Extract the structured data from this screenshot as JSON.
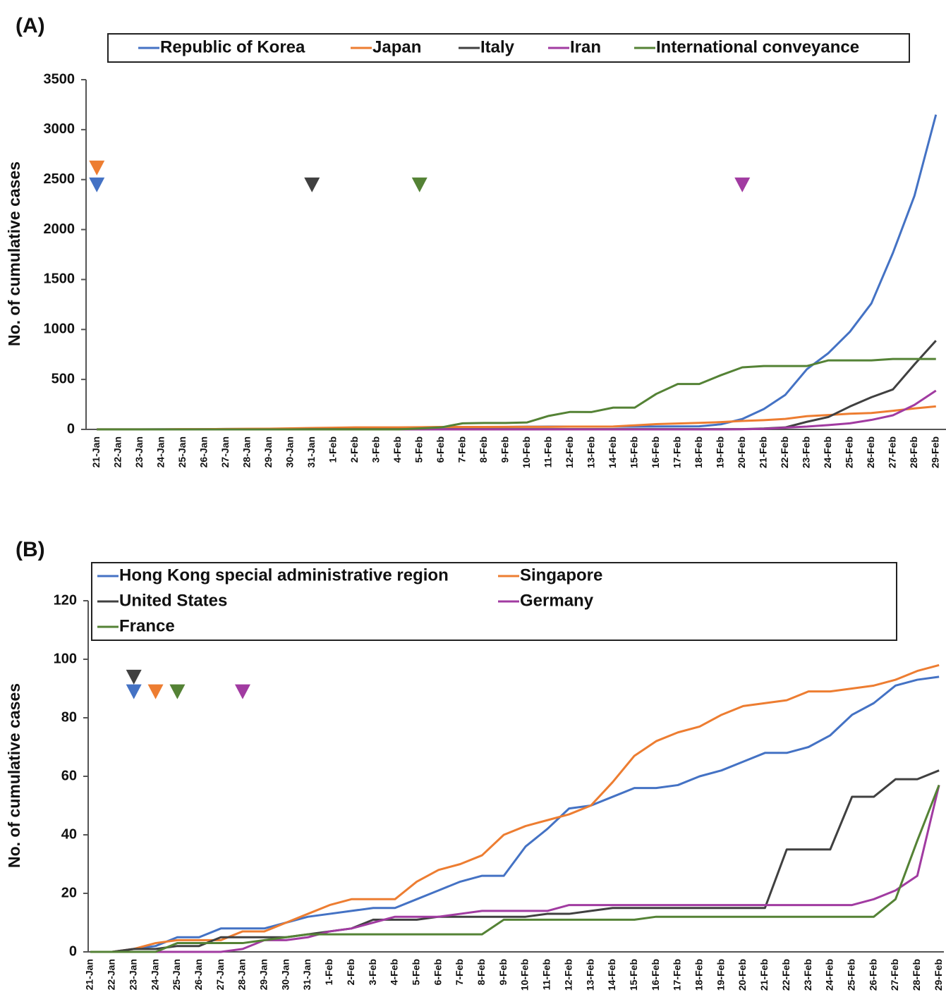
{
  "chart_data": [
    {
      "type": "line",
      "title": "(A)",
      "y_label": "No. of cumulative cases",
      "categories": [
        "21-Jan",
        "22-Jan",
        "23-Jan",
        "24-Jan",
        "25-Jan",
        "26-Jan",
        "27-Jan",
        "28-Jan",
        "29-Jan",
        "30-Jan",
        "31-Jan",
        "1-Feb",
        "2-Feb",
        "3-Feb",
        "4-Feb",
        "5-Feb",
        "6-Feb",
        "7-Feb",
        "8-Feb",
        "9-Feb",
        "10-Feb",
        "11-Feb",
        "12-Feb",
        "13-Feb",
        "14-Feb",
        "15-Feb",
        "16-Feb",
        "17-Feb",
        "18-Feb",
        "19-Feb",
        "20-Feb",
        "21-Feb",
        "22-Feb",
        "23-Feb",
        "24-Feb",
        "25-Feb",
        "26-Feb",
        "27-Feb",
        "28-Feb",
        "29-Feb"
      ],
      "ylim": [
        0,
        3500
      ],
      "yticks": [
        0,
        500,
        1000,
        1500,
        2000,
        2500,
        3000,
        3500
      ],
      "series": [
        {
          "name": "Republic of Korea",
          "color": "#4472c4",
          "values": [
            1,
            1,
            1,
            2,
            2,
            3,
            4,
            4,
            4,
            6,
            11,
            12,
            15,
            15,
            16,
            19,
            23,
            24,
            24,
            25,
            27,
            28,
            28,
            28,
            28,
            28,
            29,
            30,
            31,
            51,
            104,
            204,
            346,
            602,
            763,
            977,
            1261,
            1766,
            2337,
            3150
          ]
        },
        {
          "name": "Japan",
          "color": "#ed7d31",
          "values": [
            1,
            1,
            1,
            1,
            3,
            3,
            4,
            6,
            7,
            11,
            14,
            17,
            20,
            20,
            20,
            22,
            25,
            25,
            25,
            26,
            26,
            26,
            28,
            28,
            29,
            41,
            53,
            59,
            65,
            73,
            85,
            93,
            105,
            132,
            144,
            157,
            164,
            186,
            210,
            230
          ]
        },
        {
          "name": "Italy",
          "color": "#404040",
          "values": [
            0,
            0,
            0,
            0,
            0,
            0,
            0,
            0,
            0,
            0,
            2,
            2,
            2,
            2,
            2,
            2,
            2,
            3,
            3,
            3,
            3,
            3,
            3,
            3,
            3,
            3,
            3,
            3,
            3,
            3,
            3,
            9,
            20,
            76,
            124,
            229,
            322,
            400,
            650,
            888
          ]
        },
        {
          "name": "Iran",
          "color": "#a13ba1",
          "values": [
            0,
            0,
            0,
            0,
            0,
            0,
            0,
            0,
            0,
            0,
            0,
            0,
            0,
            0,
            0,
            0,
            0,
            0,
            0,
            0,
            0,
            0,
            0,
            0,
            0,
            0,
            0,
            0,
            0,
            0,
            2,
            5,
            18,
            28,
            43,
            61,
            95,
            141,
            245,
            388
          ]
        },
        {
          "name": "International conveyance",
          "color": "#548235",
          "values": [
            0,
            0,
            0,
            0,
            0,
            0,
            0,
            0,
            0,
            0,
            0,
            0,
            0,
            0,
            0,
            10,
            20,
            61,
            64,
            64,
            70,
            135,
            175,
            174,
            218,
            218,
            355,
            454,
            454,
            542,
            621,
            634,
            634,
            634,
            691,
            691,
            691,
            705,
            705,
            705
          ]
        }
      ],
      "markers": [
        {
          "category": "21-Jan",
          "y": 2620,
          "color": "#ed7d31"
        },
        {
          "category": "21-Jan",
          "y": 2450,
          "color": "#4472c4"
        },
        {
          "category": "31-Jan",
          "y": 2450,
          "color": "#404040"
        },
        {
          "category": "5-Feb",
          "y": 2450,
          "color": "#548235"
        },
        {
          "category": "20-Feb",
          "y": 2450,
          "color": "#a13ba1"
        }
      ]
    },
    {
      "type": "line",
      "title": "(B)",
      "y_label": "No. of cumulative cases",
      "categories": [
        "21-Jan",
        "22-Jan",
        "23-Jan",
        "24-Jan",
        "25-Jan",
        "26-Jan",
        "27-Jan",
        "28-Jan",
        "29-Jan",
        "30-Jan",
        "31-Jan",
        "1-Feb",
        "2-Feb",
        "3-Feb",
        "4-Feb",
        "5-Feb",
        "6-Feb",
        "7-Feb",
        "8-Feb",
        "9-Feb",
        "10-Feb",
        "11-Feb",
        "12-Feb",
        "13-Feb",
        "14-Feb",
        "15-Feb",
        "16-Feb",
        "17-Feb",
        "18-Feb",
        "19-Feb",
        "20-Feb",
        "21-Feb",
        "22-Feb",
        "23-Feb",
        "24-Feb",
        "25-Feb",
        "26-Feb",
        "27-Feb",
        "28-Feb",
        "29-Feb"
      ],
      "ylim": [
        0,
        120
      ],
      "yticks": [
        0,
        20,
        40,
        60,
        80,
        100,
        120
      ],
      "series": [
        {
          "name": "Hong Kong special administrative region",
          "color": "#4472c4",
          "values": [
            0,
            0,
            1,
            2,
            5,
            5,
            8,
            8,
            8,
            10,
            12,
            13,
            14,
            15,
            15,
            18,
            21,
            24,
            26,
            26,
            36,
            42,
            49,
            50,
            53,
            56,
            56,
            57,
            60,
            62,
            65,
            68,
            68,
            70,
            74,
            81,
            85,
            91,
            93,
            94
          ]
        },
        {
          "name": "Singapore",
          "color": "#ed7d31",
          "values": [
            0,
            0,
            1,
            3,
            4,
            4,
            4,
            7,
            7,
            10,
            13,
            16,
            18,
            18,
            18,
            24,
            28,
            30,
            33,
            40,
            43,
            45,
            47,
            50,
            58,
            67,
            72,
            75,
            77,
            81,
            84,
            85,
            86,
            89,
            89,
            90,
            91,
            93,
            96,
            98
          ]
        },
        {
          "name": "United States",
          "color": "#404040",
          "values": [
            0,
            0,
            1,
            1,
            2,
            2,
            5,
            5,
            5,
            5,
            6,
            7,
            8,
            11,
            11,
            11,
            12,
            12,
            12,
            12,
            12,
            13,
            13,
            14,
            15,
            15,
            15,
            15,
            15,
            15,
            15,
            15,
            35,
            35,
            35,
            53,
            53,
            59,
            59,
            62
          ]
        },
        {
          "name": "Germany",
          "color": "#a13ba1",
          "values": [
            0,
            0,
            0,
            0,
            0,
            0,
            0,
            1,
            4,
            4,
            5,
            7,
            8,
            10,
            12,
            12,
            12,
            13,
            14,
            14,
            14,
            14,
            16,
            16,
            16,
            16,
            16,
            16,
            16,
            16,
            16,
            16,
            16,
            16,
            16,
            16,
            18,
            21,
            26,
            57
          ]
        },
        {
          "name": "France",
          "color": "#548235",
          "values": [
            0,
            0,
            0,
            0,
            3,
            3,
            3,
            3,
            4,
            5,
            6,
            6,
            6,
            6,
            6,
            6,
            6,
            6,
            6,
            11,
            11,
            11,
            11,
            11,
            11,
            11,
            12,
            12,
            12,
            12,
            12,
            12,
            12,
            12,
            12,
            12,
            12,
            18,
            38,
            57
          ]
        }
      ],
      "markers": [
        {
          "category": "23-Jan",
          "y": 94,
          "color": "#404040"
        },
        {
          "category": "23-Jan",
          "y": 89,
          "color": "#4472c4"
        },
        {
          "category": "24-Jan",
          "y": 89,
          "color": "#ed7d31"
        },
        {
          "category": "25-Jan",
          "y": 89,
          "color": "#548235"
        },
        {
          "category": "28-Jan",
          "y": 89,
          "color": "#a13ba1"
        }
      ]
    }
  ]
}
